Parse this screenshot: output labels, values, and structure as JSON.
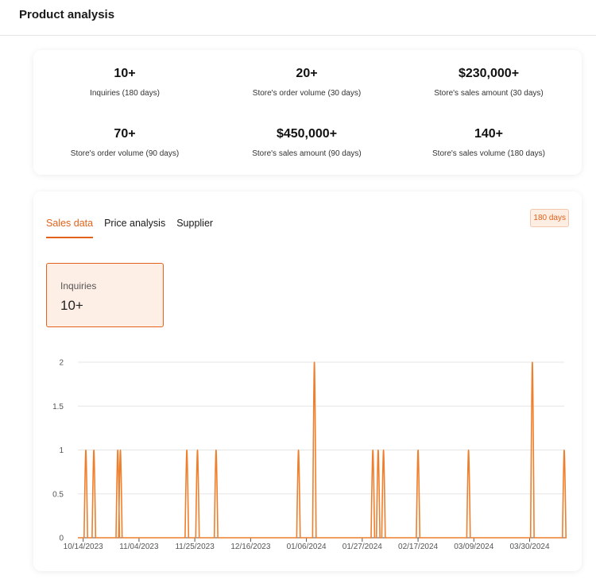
{
  "header": {
    "title": "Product analysis"
  },
  "stats": [
    {
      "value": "10+",
      "label": "Inquiries (180 days)"
    },
    {
      "value": "20+",
      "label": "Store's order volume (30 days)"
    },
    {
      "value": "$230,000+",
      "label": "Store's sales amount (30 days)"
    },
    {
      "value": "70+",
      "label": "Store's order volume (90 days)"
    },
    {
      "value": "$450,000+",
      "label": "Store's sales amount (90 days)"
    },
    {
      "value": "140+",
      "label": "Store's sales volume (180 days)"
    }
  ],
  "tabs": [
    {
      "label": "Sales data",
      "active": true
    },
    {
      "label": "Price analysis",
      "active": false
    },
    {
      "label": "Supplier",
      "active": false
    }
  ],
  "range_button": "180 days",
  "metric": {
    "label": "Inquiries",
    "value": "10+"
  },
  "colors": {
    "accent": "#e2621b",
    "line": "#ef7f2d"
  },
  "chart_data": {
    "type": "line",
    "ylim": [
      0,
      2
    ],
    "yticks": [
      "0",
      "0.5",
      "1",
      "1.5",
      "2"
    ],
    "xticks": [
      "10/14/2023",
      "11/04/2023",
      "11/25/2023",
      "12/16/2023",
      "01/06/2024",
      "01/27/2024",
      "02/17/2024",
      "03/09/2024",
      "03/30/2024"
    ],
    "series": [
      {
        "name": "",
        "points": [
          {
            "x": "10/15/2023",
            "y": 1
          },
          {
            "x": "10/18/2023",
            "y": 1
          },
          {
            "x": "10/27/2023",
            "y": 1
          },
          {
            "x": "10/28/2023",
            "y": 1
          },
          {
            "x": "11/22/2023",
            "y": 1
          },
          {
            "x": "11/26/2023",
            "y": 1
          },
          {
            "x": "12/03/2023",
            "y": 1
          },
          {
            "x": "01/03/2024",
            "y": 1
          },
          {
            "x": "01/09/2024",
            "y": 2
          },
          {
            "x": "01/31/2024",
            "y": 1
          },
          {
            "x": "02/02/2024",
            "y": 1
          },
          {
            "x": "02/04/2024",
            "y": 1
          },
          {
            "x": "02/17/2024",
            "y": 1
          },
          {
            "x": "03/07/2024",
            "y": 1
          },
          {
            "x": "03/31/2024",
            "y": 2
          },
          {
            "x": "04/12/2024",
            "y": 1
          }
        ]
      }
    ]
  }
}
